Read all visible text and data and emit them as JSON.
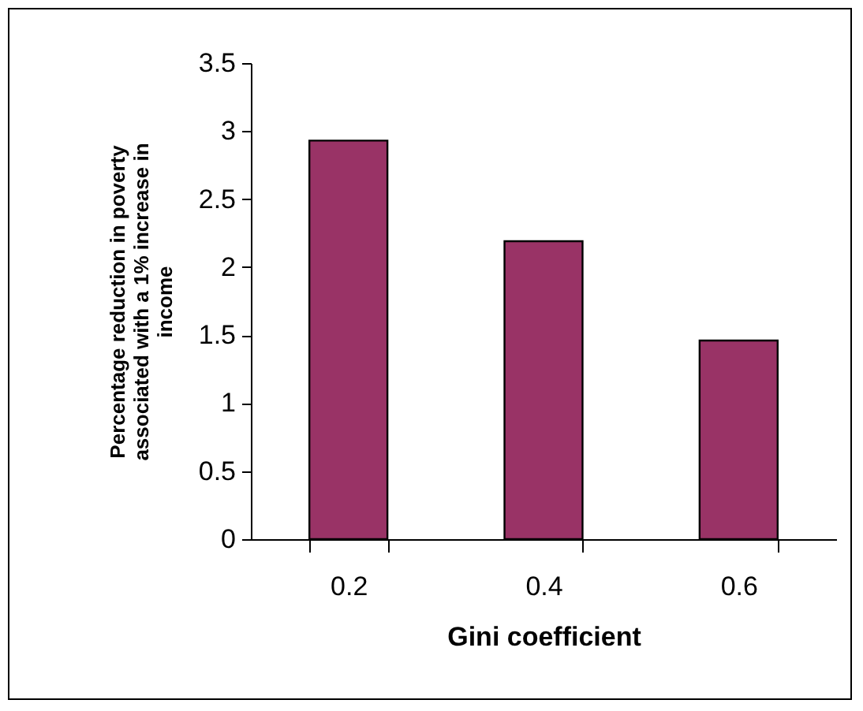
{
  "chart_data": {
    "type": "bar",
    "xlabel": "Gini coefficient",
    "ylabel": "Percentage reduction in poverty associated with a 1% increase in income",
    "categories": [
      "0.2",
      "0.4",
      "0.6"
    ],
    "values": [
      2.93,
      2.19,
      1.46
    ],
    "color": "#993366",
    "ylim": [
      0,
      3.5
    ],
    "yticks": [
      0,
      0.5,
      1,
      1.5,
      2,
      2.5,
      3,
      3.5
    ],
    "grid": false
  }
}
